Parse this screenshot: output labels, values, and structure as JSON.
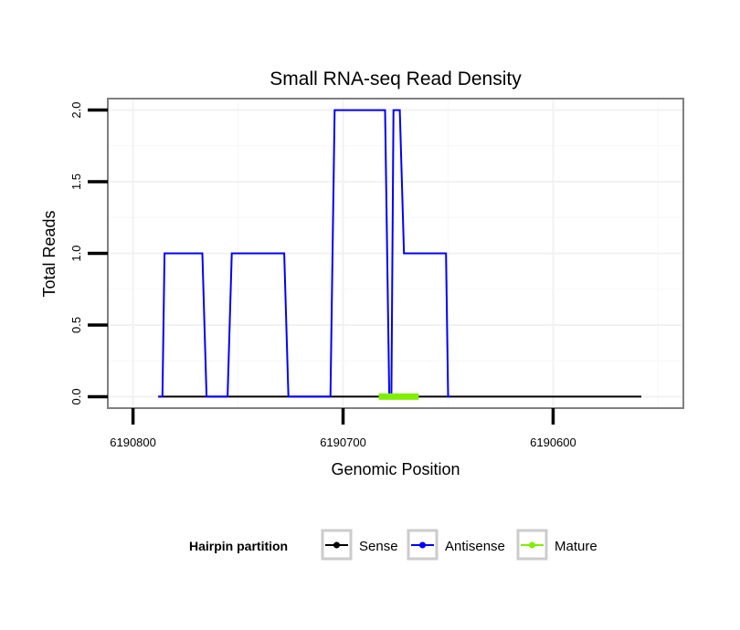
{
  "chart_data": {
    "type": "line",
    "title": "Small RNA-seq Read Density",
    "xlabel": "Genomic Position",
    "ylabel": "Total Reads",
    "xlim": [
      6190812,
      6190538
    ],
    "ylim": [
      -0.08,
      2.08
    ],
    "x_reversed": true,
    "xticks": [
      6190800,
      6190700,
      6190600
    ],
    "xtick_labels": [
      "6190800",
      "6190700",
      "6190600"
    ],
    "yticks": [
      0,
      0.5,
      1,
      1.5,
      2
    ],
    "ytick_labels": [
      "0.0",
      "0.5",
      "1.0",
      "1.5",
      "2.0"
    ],
    "legend": {
      "title": "Hairpin partition",
      "position": "bottom",
      "items": [
        {
          "label": "Sense",
          "color": "#000000"
        },
        {
          "label": "Antisense",
          "color": "#0000ff"
        },
        {
          "label": "Mature",
          "color": "#80ee00"
        }
      ]
    },
    "series": [
      {
        "name": "Sense",
        "color": "#000000",
        "x": [
          6190788,
          6190558
        ],
        "y": [
          0,
          0
        ]
      },
      {
        "name": "Antisense",
        "color": "#0000ff",
        "x": [
          6190788,
          6190786,
          6190785,
          6190767,
          6190765,
          6190755,
          6190753,
          6190728,
          6190726,
          6190706,
          6190704,
          6190680,
          6190678,
          6190677,
          6190676,
          6190673,
          6190671,
          6190655,
          6190654,
          6190651,
          6190650,
          6190649
        ],
        "y": [
          0,
          0,
          1,
          1,
          0,
          0,
          1,
          1,
          0,
          0,
          2,
          2,
          0,
          0,
          2,
          2,
          1,
          1,
          1,
          1,
          0,
          0
        ]
      },
      {
        "name": "Mature",
        "color": "#80ee00",
        "x": [
          6190683,
          6190664
        ],
        "y": [
          0,
          0
        ]
      }
    ]
  }
}
